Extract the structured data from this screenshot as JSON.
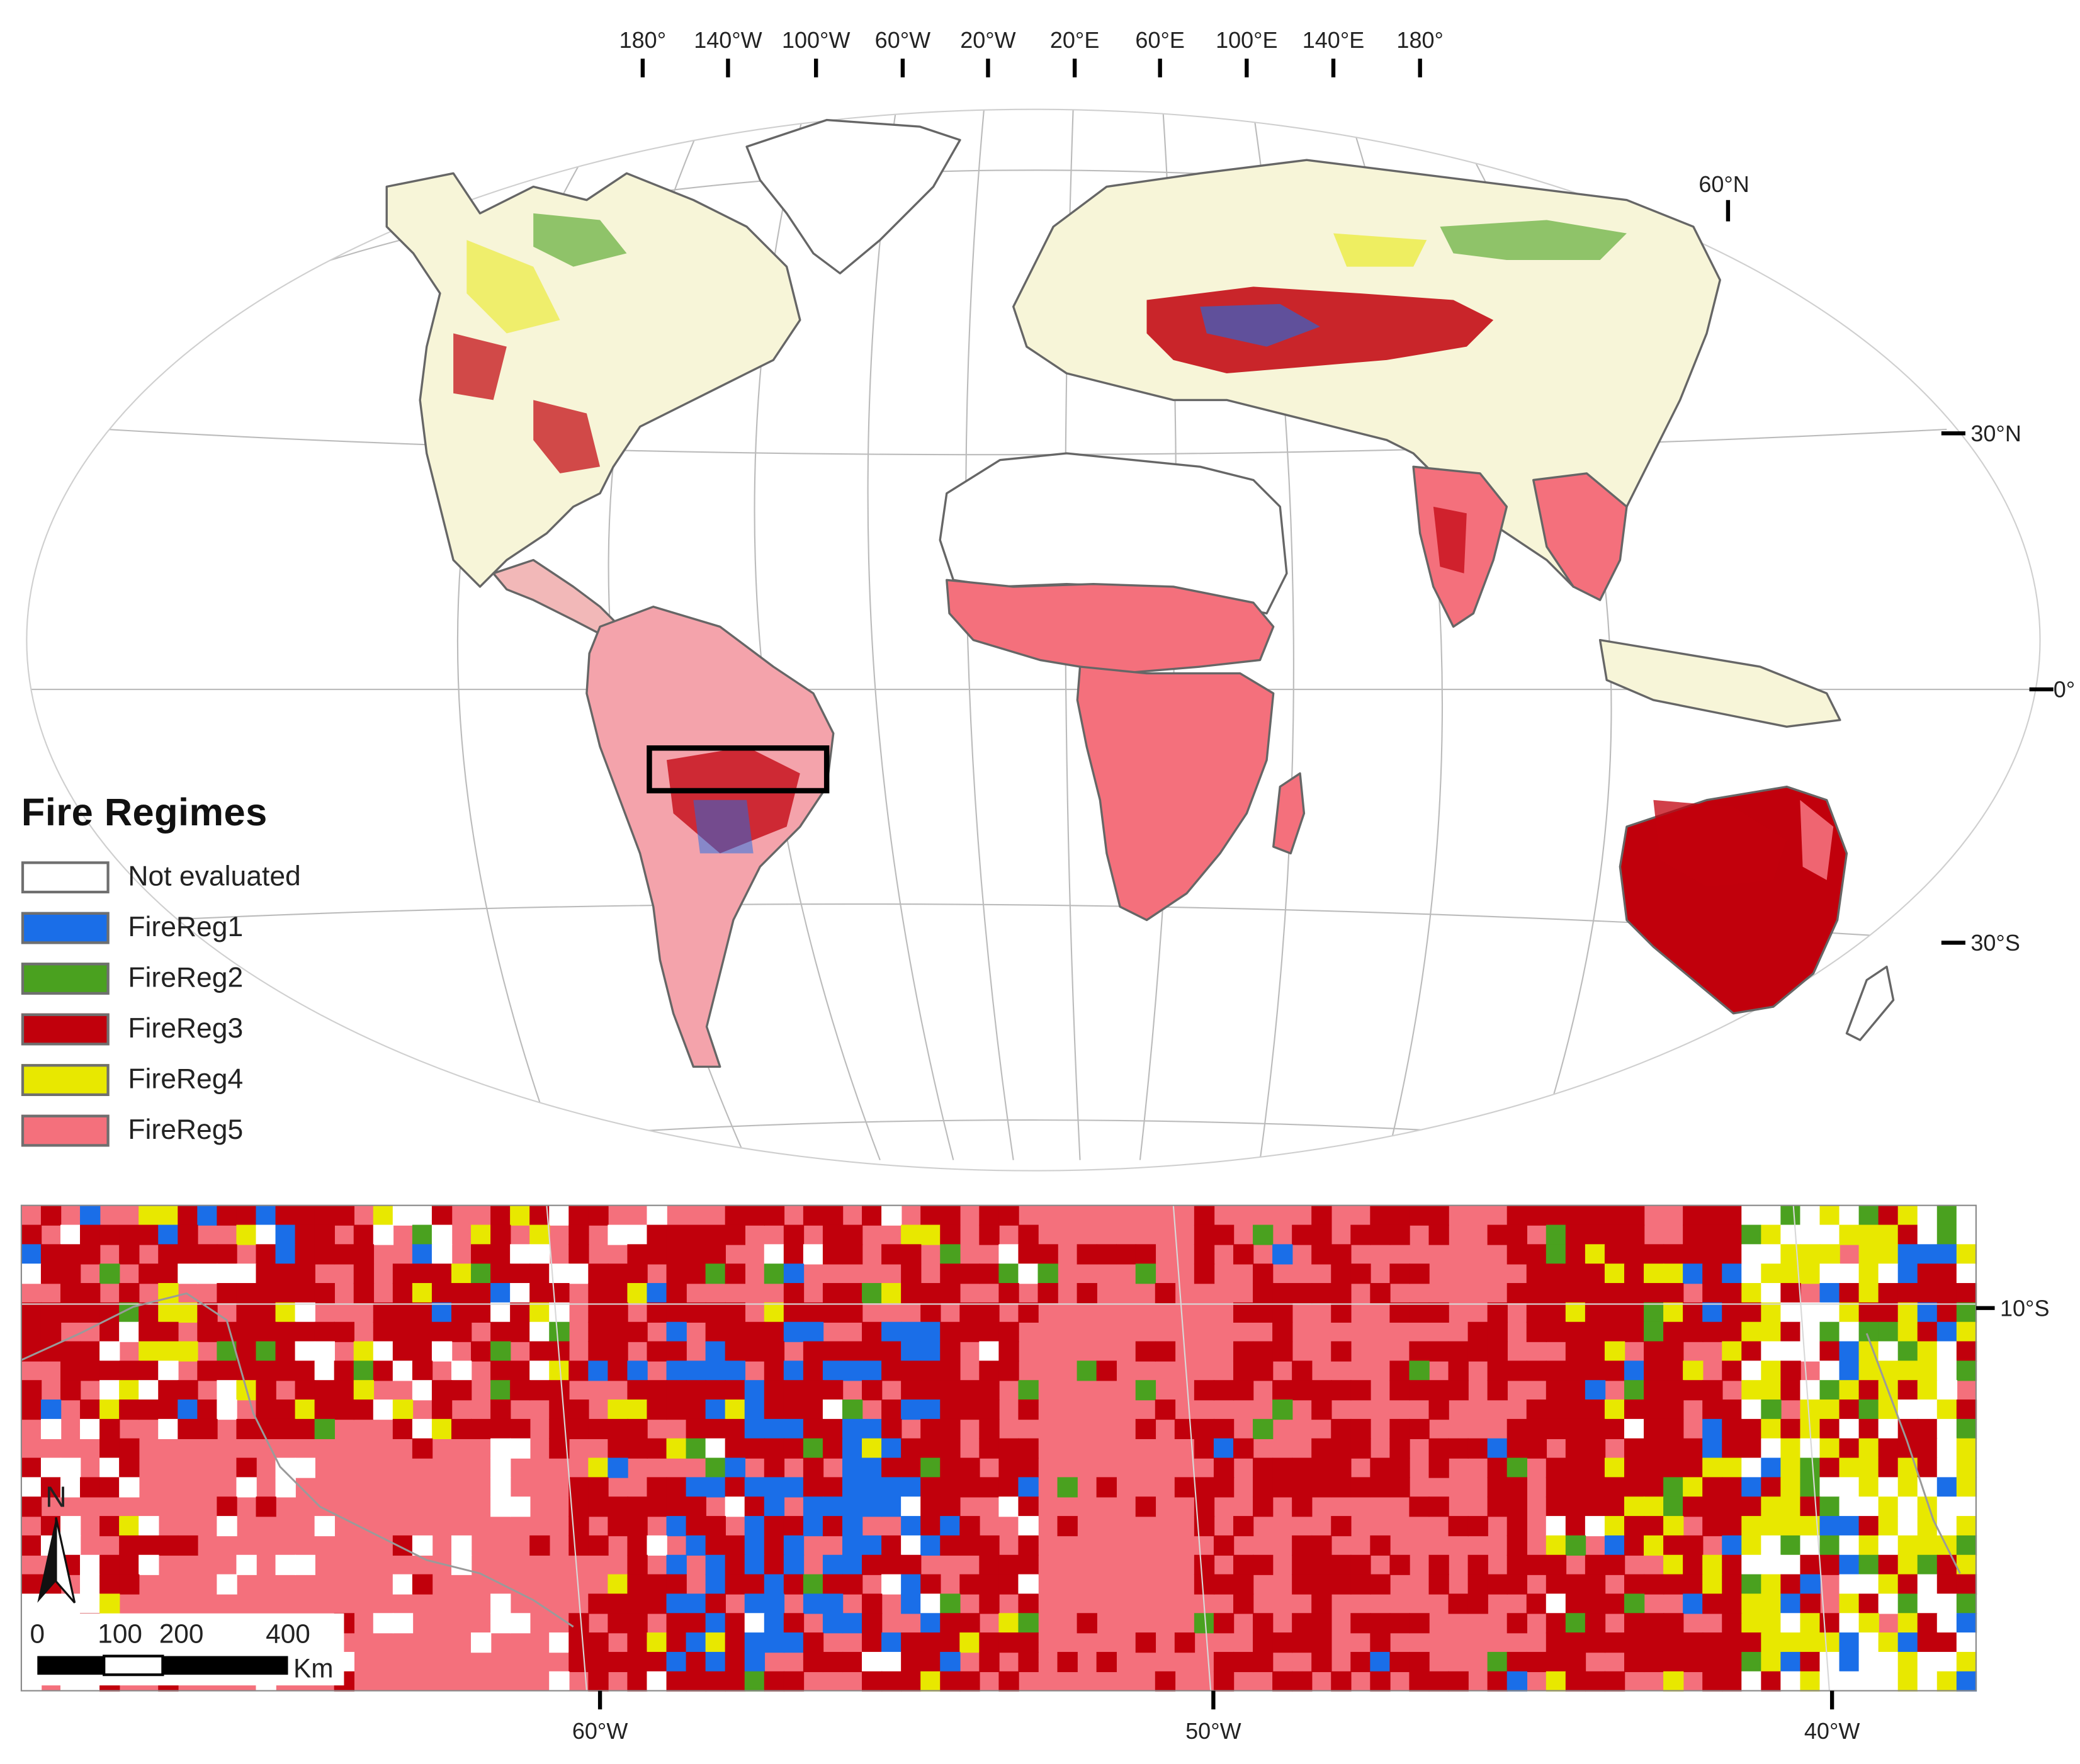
{
  "legend": {
    "title": "Fire Regimes",
    "items": [
      {
        "label": "Not evaluated",
        "color": "#ffffff"
      },
      {
        "label": "FireReg1",
        "color": "#1a6ee8"
      },
      {
        "label": "FireReg2",
        "color": "#4aa11f"
      },
      {
        "label": "FireReg3",
        "color": "#c1000c"
      },
      {
        "label": "FireReg4",
        "color": "#e8e800"
      },
      {
        "label": "FireReg5",
        "color": "#f4707c"
      }
    ]
  },
  "world_map": {
    "top_longitude_labels": [
      "180°",
      "140°W",
      "100°W",
      "60°W",
      "20°W",
      "20°E",
      "60°E",
      "100°E",
      "140°E",
      "180°"
    ],
    "right_latitude_labels": [
      "60°N",
      "30°N",
      "0°",
      "30°S"
    ],
    "study_area_box": "black-rectangle-over-central-brazil"
  },
  "inset_map": {
    "bottom_longitude_labels": [
      "60°W",
      "50°W",
      "40°W"
    ],
    "right_latitude_labels": [
      "10°S"
    ],
    "north_arrow_label": "N",
    "scale_bar": {
      "ticks": [
        "0",
        "100",
        "200",
        "400"
      ],
      "unit": "Km"
    }
  }
}
